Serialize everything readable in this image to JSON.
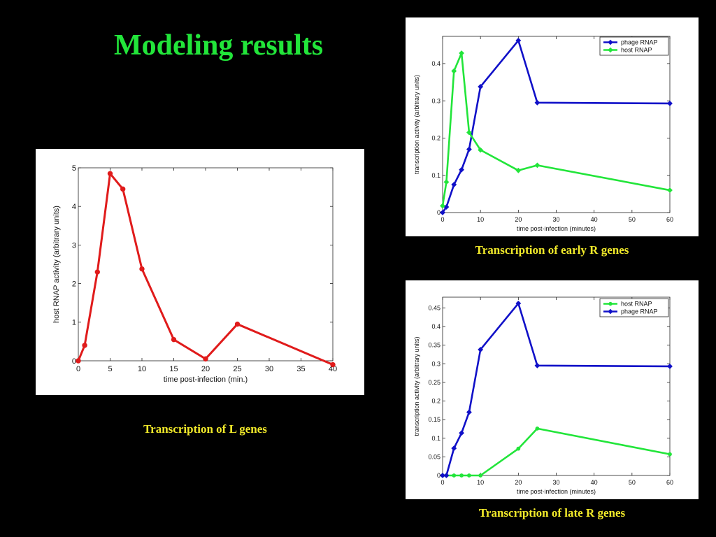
{
  "slide": {
    "title": "Modeling results"
  },
  "captions": {
    "left": "Transcription of L genes",
    "top_right": "Transcription of early R genes",
    "bottom_right": "Transcription of late R genes"
  },
  "colors": {
    "background": "#000000",
    "title": "#22e53a",
    "caption": "#f2ea2a",
    "red": "#e01b1b",
    "green": "#22e53a",
    "blue": "#1010c8"
  },
  "chart_data": [
    {
      "id": "l-genes",
      "type": "line",
      "xlabel": "time post-infection (min.)",
      "ylabel": "host RNAP activity (arbitrary units)",
      "xlim": [
        0,
        40
      ],
      "ylim": [
        0,
        5
      ],
      "xticks": [
        0,
        5,
        10,
        15,
        20,
        25,
        30,
        35,
        40
      ],
      "yticks": [
        0,
        1,
        2,
        3,
        4,
        5
      ],
      "x_scale": "linear",
      "grid": false,
      "legend": null,
      "series": [
        {
          "color": "#e01b1b",
          "marker": "circle",
          "x": [
            0,
            1,
            3,
            5,
            7,
            10,
            15,
            20,
            25,
            40
          ],
          "y": [
            0,
            0.4,
            2.3,
            4.85,
            4.45,
            2.38,
            0.55,
            0.05,
            0.95,
            -0.1
          ]
        }
      ]
    },
    {
      "id": "early-r-genes",
      "type": "line",
      "xlabel": "time post-infection (minutes)",
      "ylabel": "transcription activity (arbitrary units)",
      "xlim": [
        0,
        60
      ],
      "ylim": [
        0,
        0.47
      ],
      "xticks": [
        0,
        10,
        20,
        30,
        40,
        50,
        60
      ],
      "yticks": [
        0,
        0.1,
        0.2,
        0.3,
        0.4
      ],
      "ytick_labels": [
        "0",
        "0.1",
        "0.2",
        "0.3",
        "0.4"
      ],
      "x_scale": "piecewise: 0-25 linear, 25-60 compressed onto tick 50-60",
      "grid": false,
      "legend": "top-right",
      "series": [
        {
          "name": "phage RNAP",
          "color": "#1010c8",
          "marker": "diamond",
          "x": [
            0,
            1,
            3,
            5,
            7,
            10,
            20,
            25,
            60
          ],
          "y": [
            0,
            0.015,
            0.075,
            0.115,
            0.17,
            0.338,
            0.462,
            0.295,
            0.293
          ]
        },
        {
          "name": "host RNAP",
          "color": "#22e53a",
          "marker": "diamond",
          "x": [
            0,
            1,
            3,
            5,
            7,
            10,
            20,
            25,
            60
          ],
          "y": [
            0.018,
            0.082,
            0.38,
            0.428,
            0.215,
            0.168,
            0.113,
            0.127,
            0.06
          ]
        }
      ]
    },
    {
      "id": "late-r-genes",
      "type": "line",
      "xlabel": "time post-infection (minutes)",
      "ylabel": "transcription activity (arbitrary units)",
      "xlim": [
        0,
        60
      ],
      "ylim": [
        0,
        0.47
      ],
      "xticks": [
        0,
        10,
        20,
        30,
        40,
        50,
        60
      ],
      "yticks": [
        0,
        0.05,
        0.1,
        0.15,
        0.2,
        0.25,
        0.3,
        0.35,
        0.4,
        0.45
      ],
      "ytick_labels": [
        "0",
        "0.05",
        "0.1",
        "0.15",
        "0.2",
        "0.25",
        "0.3",
        "0.35",
        "0.4",
        "0.45"
      ],
      "x_scale": "piecewise: 0-25 linear, 25-60 compressed onto tick 50-60",
      "grid": false,
      "legend": "top-right",
      "series": [
        {
          "name": "host RNAP",
          "color": "#22e53a",
          "marker": "circle",
          "x": [
            0,
            1,
            3,
            5,
            7,
            10,
            20,
            25,
            60
          ],
          "y": [
            0,
            0,
            0,
            0,
            0,
            0,
            0.072,
            0.126,
            0.057
          ]
        },
        {
          "name": "phage RNAP",
          "color": "#1010c8",
          "marker": "diamond",
          "x": [
            0,
            1,
            3,
            5,
            7,
            10,
            20,
            25,
            60
          ],
          "y": [
            0,
            0,
            0.073,
            0.114,
            0.17,
            0.338,
            0.462,
            0.295,
            0.293
          ]
        }
      ]
    }
  ]
}
